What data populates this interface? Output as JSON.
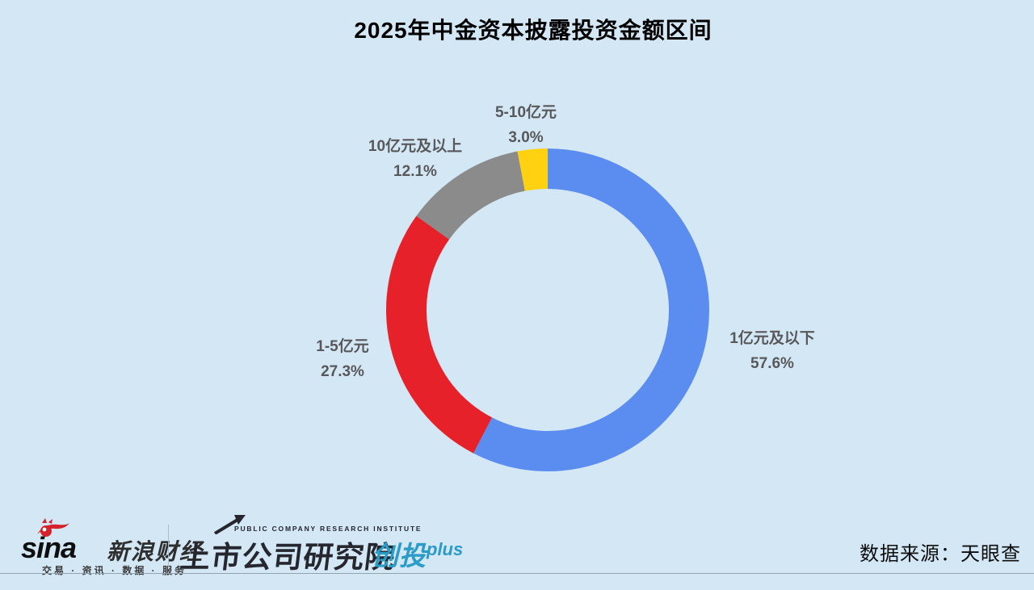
{
  "title": "2025年中金资本披露投资金额区间",
  "chart_data": {
    "type": "pie",
    "subtype": "donut",
    "title": "2025年中金资本披露投资金额区间",
    "series": [
      {
        "label": "1亿元及以下",
        "value": 57.6,
        "pct_label": "57.6%",
        "color": "#5B8DF0"
      },
      {
        "label": "1-5亿元",
        "value": 27.3,
        "pct_label": "27.3%",
        "color": "#E62129"
      },
      {
        "label": "10亿元及以上",
        "value": 12.1,
        "pct_label": "12.1%",
        "color": "#8B8B8B"
      },
      {
        "label": "5-10亿元",
        "value": 3.0,
        "pct_label": "3.0%",
        "color": "#FFD111"
      }
    ],
    "start_angle_deg": 0,
    "direction": "clockwise",
    "inner_radius_ratio": 0.75,
    "legend": "off",
    "labels_position": "outside",
    "background_color": "#D3E7F5",
    "label_text_color": "#58585A"
  },
  "footer": {
    "sina": {
      "brand": "sina",
      "name": "新浪财经",
      "tagline": "交易 · 资讯 · 数据 · 服务"
    },
    "institute": {
      "en": "PUBLIC COMPANY RESEARCH INSTITUTE",
      "cn": "上市公司研究院"
    },
    "chuangtou": {
      "cn": "创投",
      "suffix": "plus"
    },
    "source": "数据来源：天眼查"
  }
}
